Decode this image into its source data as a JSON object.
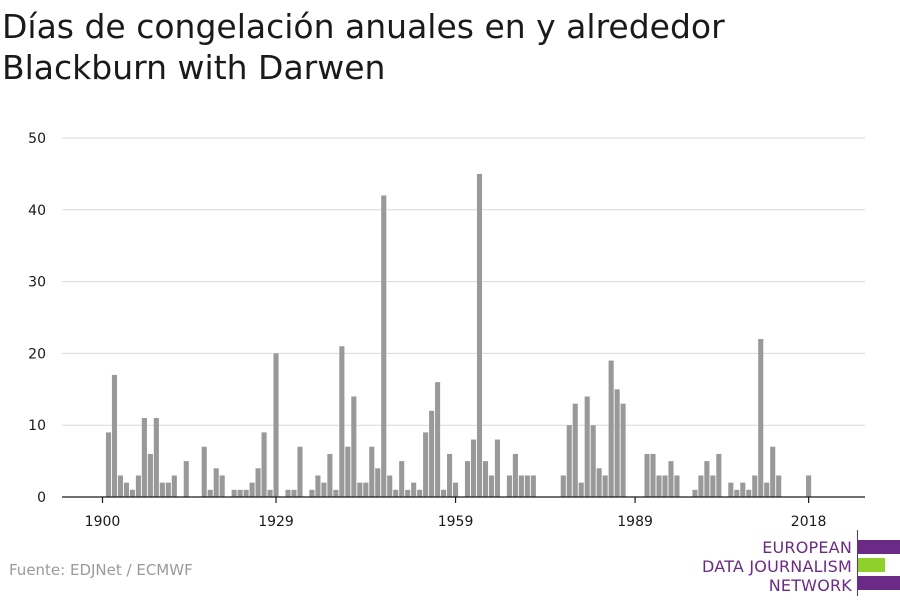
{
  "title_lines": [
    "Días de congelación anuales en y alrededor",
    "Blackburn with Darwen"
  ],
  "source": "Fuente: EDJNet / ECMWF",
  "logo": {
    "lines": [
      "EUROPEAN",
      "DATA JOURNALISM",
      "NETWORK"
    ],
    "colors": [
      "#6b2a86",
      "#8fd12a",
      "#6b2a86"
    ]
  },
  "chart_data": {
    "type": "bar",
    "title": "Días de congelación anuales en y alrededor Blackburn with Darwen",
    "xlabel": "",
    "ylabel": "",
    "ylim": [
      0,
      50
    ],
    "yticks": [
      0,
      10,
      20,
      30,
      40,
      50
    ],
    "xticks": [
      1900,
      1929,
      1959,
      1989,
      2018
    ],
    "grid": true,
    "bar_color": "#999999",
    "x": [
      1900,
      1901,
      1902,
      1903,
      1904,
      1905,
      1906,
      1907,
      1908,
      1909,
      1910,
      1911,
      1912,
      1913,
      1914,
      1915,
      1916,
      1917,
      1918,
      1919,
      1920,
      1921,
      1922,
      1923,
      1924,
      1925,
      1926,
      1927,
      1928,
      1929,
      1930,
      1931,
      1932,
      1933,
      1934,
      1935,
      1936,
      1937,
      1938,
      1939,
      1940,
      1941,
      1942,
      1943,
      1944,
      1945,
      1946,
      1947,
      1948,
      1949,
      1950,
      1951,
      1952,
      1953,
      1954,
      1955,
      1956,
      1957,
      1958,
      1959,
      1960,
      1961,
      1962,
      1963,
      1964,
      1965,
      1966,
      1967,
      1968,
      1969,
      1970,
      1971,
      1972,
      1973,
      1974,
      1975,
      1976,
      1977,
      1978,
      1979,
      1980,
      1981,
      1982,
      1983,
      1984,
      1985,
      1986,
      1987,
      1988,
      1989,
      1990,
      1991,
      1992,
      1993,
      1994,
      1995,
      1996,
      1997,
      1998,
      1999,
      2000,
      2001,
      2002,
      2003,
      2004,
      2005,
      2006,
      2007,
      2008,
      2009,
      2010,
      2011,
      2012,
      2013,
      2014,
      2015,
      2016,
      2017,
      2018
    ],
    "values": [
      0,
      9,
      17,
      3,
      2,
      1,
      3,
      11,
      6,
      11,
      2,
      2,
      3,
      0,
      5,
      0,
      0,
      7,
      1,
      4,
      3,
      0,
      1,
      1,
      1,
      2,
      4,
      9,
      1,
      20,
      0,
      1,
      1,
      7,
      0,
      1,
      3,
      2,
      6,
      1,
      21,
      7,
      14,
      2,
      2,
      7,
      4,
      42,
      3,
      1,
      5,
      1,
      2,
      1,
      9,
      12,
      16,
      1,
      6,
      2,
      0,
      5,
      8,
      45,
      5,
      3,
      8,
      0,
      3,
      6,
      3,
      3,
      3,
      0,
      0,
      0,
      0,
      3,
      10,
      13,
      2,
      14,
      10,
      4,
      3,
      19,
      15,
      13,
      0,
      0,
      0,
      6,
      6,
      3,
      3,
      5,
      3,
      0,
      0,
      1,
      3,
      5,
      3,
      6,
      0,
      2,
      1,
      2,
      1,
      3,
      22,
      2,
      7,
      3,
      0,
      0,
      0,
      0,
      3
    ]
  }
}
